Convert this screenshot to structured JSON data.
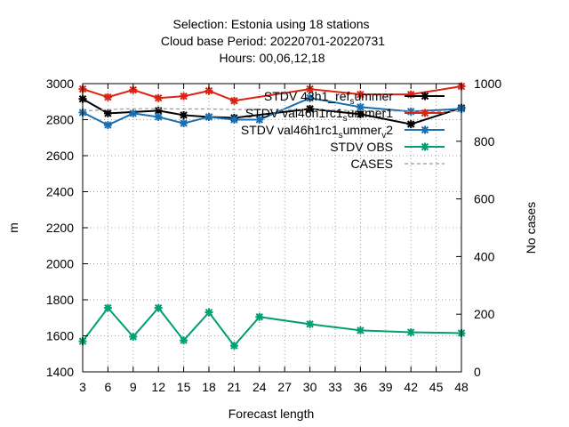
{
  "chart_data": {
    "type": "line",
    "title_lines": [
      "Selection: Estonia using    18 stations",
      "Cloud base   Period: 20220701-20220731",
      "Hours:  00,06,12,18"
    ],
    "xlabel": "Forecast length",
    "ylabel": "m",
    "y2label": "No cases",
    "x_ticks": [
      3,
      6,
      9,
      12,
      15,
      18,
      21,
      24,
      27,
      30,
      33,
      36,
      39,
      42,
      45,
      48
    ],
    "xlim": [
      3,
      48
    ],
    "ylim": [
      1400,
      3000
    ],
    "y_ticks": [
      1400,
      1600,
      1800,
      2000,
      2200,
      2400,
      2600,
      2800,
      3000
    ],
    "y2lim": [
      0,
      1000
    ],
    "y2_ticks": [
      0,
      200,
      400,
      600,
      800,
      1000
    ],
    "grid": true,
    "legend_position": "top-right",
    "series": [
      {
        "name": "STDV 43h1_ref_summer",
        "legend_parts": [
          "STDV 43h1",
          "ref",
          "s",
          "ummer"
        ],
        "color": "#000000",
        "axis": "y1",
        "x": [
          3,
          6,
          12,
          15,
          18,
          21,
          30,
          36,
          42,
          48
        ],
        "values": [
          2915,
          2835,
          2850,
          2825,
          2815,
          2810,
          2860,
          2830,
          2775,
          2865
        ]
      },
      {
        "name": "STDV val46h1rc1_summer_1",
        "legend_parts": [
          "STDV val46h1rc1",
          "s",
          "ummer",
          "1"
        ],
        "color": "#dd2211",
        "axis": "y1",
        "x": [
          3,
          6,
          9,
          12,
          15,
          18,
          21,
          30,
          36,
          42,
          48
        ],
        "values": [
          2970,
          2925,
          2965,
          2920,
          2930,
          2960,
          2905,
          2970,
          2940,
          2940,
          2985
        ]
      },
      {
        "name": "STDV val46h1rc1_summer_v2",
        "legend_parts": [
          "STDV val46h1rc1",
          "s",
          "ummer",
          "v",
          "2"
        ],
        "color": "#1a6fb0",
        "axis": "y1",
        "x": [
          3,
          6,
          9,
          12,
          15,
          18,
          21,
          24,
          30,
          36,
          42,
          48
        ],
        "values": [
          2840,
          2770,
          2835,
          2815,
          2780,
          2815,
          2800,
          2800,
          2920,
          2870,
          2845,
          2860
        ]
      },
      {
        "name": "STDV OBS",
        "legend_parts": [
          "STDV OBS"
        ],
        "color": "#009e73",
        "axis": "y1",
        "x": [
          3,
          6,
          9,
          12,
          15,
          18,
          21,
          24,
          30,
          36,
          42,
          48
        ],
        "values": [
          1570,
          1755,
          1595,
          1755,
          1575,
          1730,
          1545,
          1705,
          1665,
          1630,
          1620,
          1615
        ]
      },
      {
        "name": "CASES",
        "legend_parts": [
          "CASES"
        ],
        "color": "#999999",
        "axis": "y2",
        "dashed": true,
        "x": [
          3,
          6,
          9,
          12,
          15,
          18,
          21,
          24,
          27,
          30,
          33,
          36,
          39,
          42,
          45,
          48
        ],
        "values": [
          905,
          910,
          913,
          913,
          912,
          912,
          910,
          910,
          910,
          910,
          908,
          906,
          905,
          904,
          903,
          903
        ]
      }
    ]
  }
}
